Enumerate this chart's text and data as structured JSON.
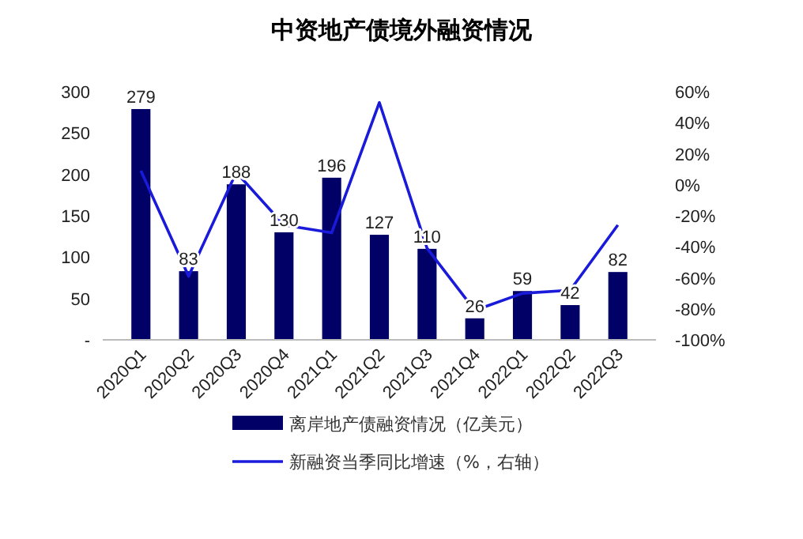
{
  "chart_data": {
    "type": "bar",
    "title": "中资地产债境外融资情况",
    "categories": [
      "2020Q1",
      "2020Q2",
      "2020Q3",
      "2020Q4",
      "2021Q1",
      "2021Q2",
      "2021Q3",
      "2021Q4",
      "2022Q1",
      "2022Q2",
      "2022Q3"
    ],
    "series": [
      {
        "name": "离岸地产债融资情况（亿美元）",
        "color": "#000066",
        "values": [
          279,
          83,
          188,
          130,
          196,
          127,
          110,
          26,
          59,
          42,
          82
        ],
        "value_labels": [
          "279",
          "83",
          "188",
          "130",
          "196",
          "127",
          "110",
          "26",
          "59",
          "42",
          "82"
        ]
      },
      {
        "name": "新融资当季同比增速（%，右轴）",
        "type": "line",
        "axis": "y2",
        "color": "#1a1adb",
        "values": [
          9,
          -59,
          8,
          -26,
          -31,
          53,
          -41,
          -81,
          -70,
          -68,
          -26
        ]
      }
    ],
    "ylim": [
      0,
      300
    ],
    "yticks": [
      {
        "value": 0,
        "label": "-"
      },
      50,
      100,
      150,
      200,
      250,
      300
    ],
    "y2lim": [
      -100,
      60
    ],
    "y2ticks": [
      {
        "value": -100,
        "label": "-100%"
      },
      {
        "value": -80,
        "label": "-80%"
      },
      {
        "value": -60,
        "label": "-60%"
      },
      {
        "value": -40,
        "label": "-40%"
      },
      {
        "value": -20,
        "label": "-20%"
      },
      {
        "value": 0,
        "label": "0%"
      },
      {
        "value": 20,
        "label": "20%"
      },
      {
        "value": 40,
        "label": "40%"
      },
      {
        "value": 60,
        "label": "60%"
      }
    ],
    "grid": false,
    "legend": "bottom",
    "marker": "none",
    "line_style": "solid"
  }
}
